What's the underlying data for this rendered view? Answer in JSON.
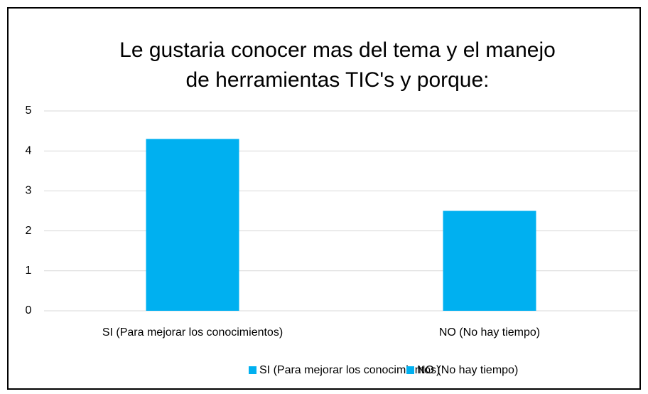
{
  "chart_data": {
    "type": "bar",
    "title": "Le gustaria conocer mas del tema y el manejo de herramientas TIC's y porque:",
    "categories": [
      "SI (Para mejorar los conocimientos)",
      "NO (No hay tiempo)"
    ],
    "series": [
      {
        "name": "SI (Para mejorar los conocimientos)",
        "color": "#00b0f0",
        "values": [
          4.3,
          null
        ]
      },
      {
        "name": "NO (No hay tiempo)",
        "color": "#00b0f0",
        "values": [
          null,
          2.5
        ]
      }
    ],
    "ylim": [
      0,
      5
    ],
    "yticks": [
      0,
      1,
      2,
      3,
      4,
      5
    ],
    "grid": true,
    "legend": "bottom"
  }
}
